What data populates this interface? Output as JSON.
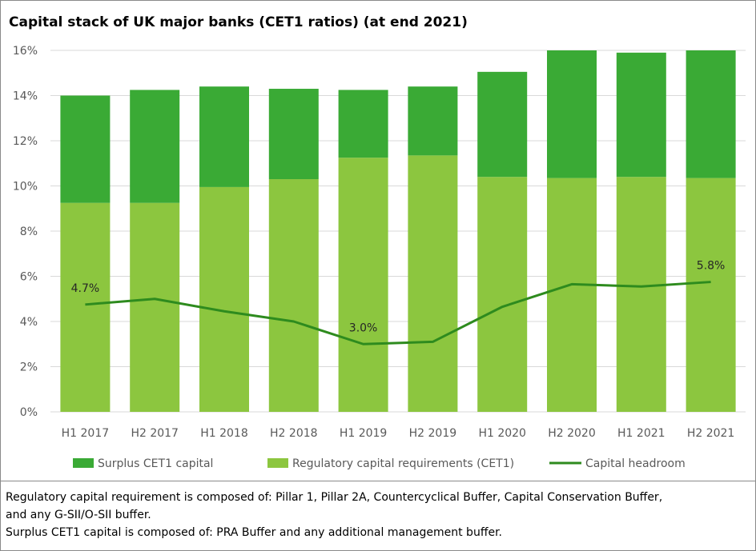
{
  "chart_data": {
    "type": "bar",
    "title": "Capital stack of UK major banks (CET1 ratios) (at end 2021)",
    "categories": [
      "H1 2017",
      "H2 2017",
      "H1 2018",
      "H2 2018",
      "H1 2019",
      "H2 2019",
      "H1 2020",
      "H2 2020",
      "H1 2021",
      "H2 2021"
    ],
    "stacked": true,
    "series": [
      {
        "name": "Surplus CET1 capital",
        "kind": "bar",
        "color": "#3aaa35",
        "values": [
          4.75,
          5.0,
          4.45,
          4.0,
          3.0,
          3.05,
          4.65,
          5.65,
          5.5,
          5.65
        ]
      },
      {
        "name": "Regulatory capital requirements (CET1)",
        "kind": "bar",
        "color": "#8cc63f",
        "values": [
          9.25,
          9.25,
          9.95,
          10.3,
          11.25,
          11.35,
          10.4,
          10.35,
          10.4,
          10.35
        ]
      },
      {
        "name": "Capital headroom",
        "kind": "line",
        "color": "#2e8b1e",
        "values": [
          4.75,
          5.0,
          4.45,
          4.0,
          3.0,
          3.1,
          4.65,
          5.65,
          5.55,
          5.75
        ]
      }
    ],
    "data_labels": [
      {
        "index": 0,
        "text": "4.7%"
      },
      {
        "index": 4,
        "text": "3.0%"
      },
      {
        "index": 9,
        "text": "5.8%"
      }
    ],
    "ylim": [
      0,
      16
    ],
    "yticks": [
      "0%",
      "2%",
      "4%",
      "6%",
      "8%",
      "10%",
      "12%",
      "14%",
      "16%"
    ],
    "ytick_values": [
      0,
      2,
      4,
      6,
      8,
      10,
      12,
      14,
      16
    ],
    "xlabel": "",
    "ylabel": "",
    "grid": true,
    "legend_position": "bottom"
  },
  "notes": [
    "Regulatory capital requirement is composed of: Pillar 1, Pillar 2A, Countercyclical Buffer, Capital Conservation Buffer,",
    "and any G-SII/O-SII buffer.",
    "Surplus CET1 capital is composed of: PRA Buffer and any additional management buffer."
  ]
}
